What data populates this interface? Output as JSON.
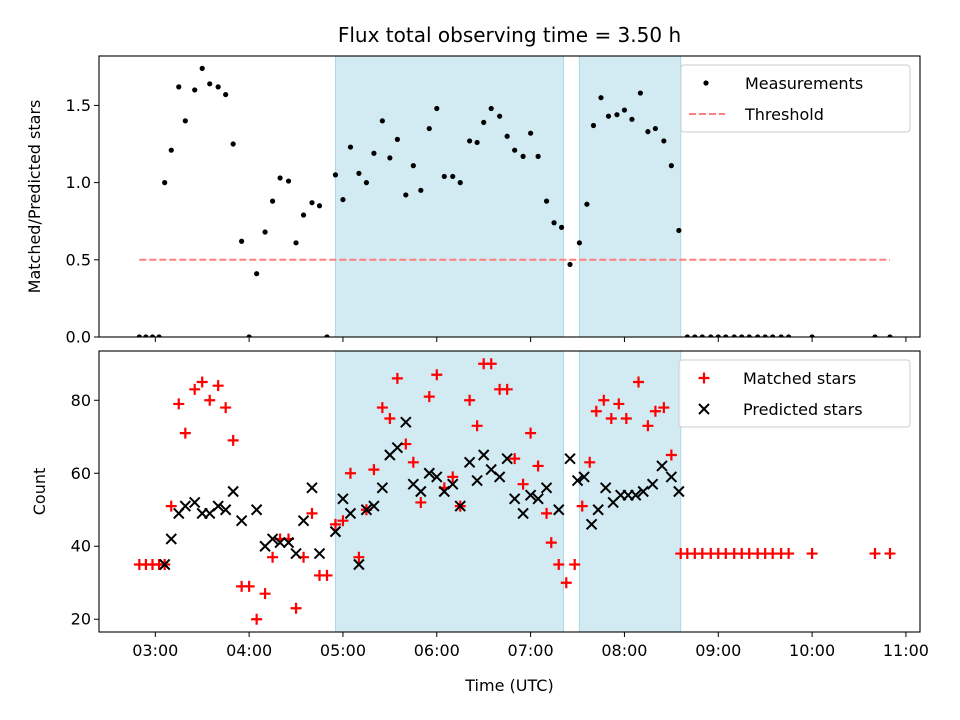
{
  "title": "Flux total observing time = 3.50 h",
  "x_tick_labels": [
    "03:00",
    "04:00",
    "05:00",
    "06:00",
    "07:00",
    "08:00",
    "09:00",
    "10:00",
    "11:00"
  ],
  "x_label": "Time (UTC)",
  "chart_data": [
    {
      "type": "scatter",
      "ylabel": "Matched/Predicted stars",
      "xlim": [
        2.4,
        11.15
      ],
      "ylim": [
        0,
        1.82
      ],
      "y_ticks": [
        0.0,
        0.5,
        1.0,
        1.5
      ],
      "y_tick_labels": [
        "0.0",
        "0.5",
        "1.0",
        "1.5"
      ],
      "shaded_intervals": [
        [
          4.92,
          7.35
        ],
        [
          7.52,
          8.6
        ]
      ],
      "shade_color": "#add8e6",
      "legend_position": "top-right",
      "series": [
        {
          "name": "Measurements",
          "marker": "dot",
          "color": "#000000",
          "points": [
            [
              2.83,
              0.0
            ],
            [
              2.9,
              0.0
            ],
            [
              2.97,
              0.0
            ],
            [
              3.04,
              0.0
            ],
            [
              3.1,
              1.0
            ],
            [
              3.17,
              1.21
            ],
            [
              3.25,
              1.62
            ],
            [
              3.32,
              1.4
            ],
            [
              3.42,
              1.6
            ],
            [
              3.5,
              1.74
            ],
            [
              3.58,
              1.64
            ],
            [
              3.67,
              1.62
            ],
            [
              3.75,
              1.57
            ],
            [
              3.83,
              1.25
            ],
            [
              3.92,
              0.62
            ],
            [
              4.0,
              0.0
            ],
            [
              4.08,
              0.41
            ],
            [
              4.17,
              0.68
            ],
            [
              4.25,
              0.88
            ],
            [
              4.33,
              1.03
            ],
            [
              4.42,
              1.01
            ],
            [
              4.5,
              0.61
            ],
            [
              4.58,
              0.79
            ],
            [
              4.67,
              0.87
            ],
            [
              4.75,
              0.85
            ],
            [
              4.83,
              0.0
            ],
            [
              4.92,
              1.05
            ],
            [
              5.0,
              0.89
            ],
            [
              5.08,
              1.23
            ],
            [
              5.17,
              1.06
            ],
            [
              5.25,
              1.0
            ],
            [
              5.33,
              1.19
            ],
            [
              5.42,
              1.4
            ],
            [
              5.5,
              1.16
            ],
            [
              5.58,
              1.28
            ],
            [
              5.67,
              0.92
            ],
            [
              5.75,
              1.11
            ],
            [
              5.83,
              0.95
            ],
            [
              5.92,
              1.35
            ],
            [
              6.0,
              1.48
            ],
            [
              6.08,
              1.04
            ],
            [
              6.17,
              1.04
            ],
            [
              6.25,
              1.0
            ],
            [
              6.35,
              1.27
            ],
            [
              6.43,
              1.26
            ],
            [
              6.5,
              1.39
            ],
            [
              6.58,
              1.48
            ],
            [
              6.67,
              1.43
            ],
            [
              6.75,
              1.3
            ],
            [
              6.83,
              1.21
            ],
            [
              6.92,
              1.17
            ],
            [
              7.0,
              1.32
            ],
            [
              7.08,
              1.17
            ],
            [
              7.17,
              0.88
            ],
            [
              7.25,
              0.74
            ],
            [
              7.33,
              0.71
            ],
            [
              7.42,
              0.47
            ],
            [
              7.52,
              0.61
            ],
            [
              7.6,
              0.86
            ],
            [
              7.67,
              1.37
            ],
            [
              7.75,
              1.55
            ],
            [
              7.83,
              1.43
            ],
            [
              7.92,
              1.44
            ],
            [
              8.0,
              1.47
            ],
            [
              8.08,
              1.41
            ],
            [
              8.17,
              1.58
            ],
            [
              8.25,
              1.33
            ],
            [
              8.33,
              1.35
            ],
            [
              8.42,
              1.27
            ],
            [
              8.5,
              1.11
            ],
            [
              8.58,
              0.69
            ],
            [
              8.67,
              0.0
            ],
            [
              8.75,
              0.0
            ],
            [
              8.83,
              0.0
            ],
            [
              8.92,
              0.0
            ],
            [
              9.0,
              0.0
            ],
            [
              9.08,
              0.0
            ],
            [
              9.17,
              0.0
            ],
            [
              9.25,
              0.0
            ],
            [
              9.33,
              0.0
            ],
            [
              9.42,
              0.0
            ],
            [
              9.5,
              0.0
            ],
            [
              9.58,
              0.0
            ],
            [
              9.67,
              0.0
            ],
            [
              9.75,
              0.0
            ],
            [
              10.0,
              0.0
            ],
            [
              10.67,
              0.0
            ],
            [
              10.83,
              0.0
            ]
          ]
        },
        {
          "name": "Threshold",
          "type": "line",
          "style": "dashed",
          "color": "#ff7f7f",
          "points": [
            [
              2.83,
              0.5
            ],
            [
              10.83,
              0.5
            ]
          ]
        }
      ]
    },
    {
      "type": "scatter",
      "ylabel": "Count",
      "xlim": [
        2.4,
        11.15
      ],
      "ylim": [
        16.5,
        93.5
      ],
      "y_ticks": [
        20,
        40,
        60,
        80
      ],
      "y_tick_labels": [
        "20",
        "40",
        "60",
        "80"
      ],
      "shaded_intervals": [
        [
          4.92,
          7.35
        ],
        [
          7.52,
          8.6
        ]
      ],
      "shade_color": "#add8e6",
      "legend_position": "top-right",
      "series": [
        {
          "name": "Matched stars",
          "marker": "plus",
          "color": "#ff0000",
          "points": [
            [
              2.83,
              35
            ],
            [
              2.9,
              35
            ],
            [
              2.97,
              35
            ],
            [
              3.04,
              35
            ],
            [
              3.1,
              35
            ],
            [
              3.17,
              51
            ],
            [
              3.25,
              79
            ],
            [
              3.32,
              71
            ],
            [
              3.42,
              83
            ],
            [
              3.5,
              85
            ],
            [
              3.58,
              80
            ],
            [
              3.67,
              84
            ],
            [
              3.75,
              78
            ],
            [
              3.83,
              69
            ],
            [
              3.92,
              29
            ],
            [
              4.0,
              29
            ],
            [
              4.08,
              20
            ],
            [
              4.17,
              27
            ],
            [
              4.25,
              37
            ],
            [
              4.33,
              42
            ],
            [
              4.42,
              42
            ],
            [
              4.5,
              23
            ],
            [
              4.58,
              37
            ],
            [
              4.67,
              49
            ],
            [
              4.75,
              32
            ],
            [
              4.83,
              32
            ],
            [
              4.92,
              46
            ],
            [
              5.0,
              47
            ],
            [
              5.08,
              60
            ],
            [
              5.17,
              37
            ],
            [
              5.25,
              50
            ],
            [
              5.33,
              61
            ],
            [
              5.42,
              78
            ],
            [
              5.5,
              75
            ],
            [
              5.58,
              86
            ],
            [
              5.67,
              68
            ],
            [
              5.75,
              63
            ],
            [
              5.83,
              52
            ],
            [
              5.92,
              81
            ],
            [
              6.0,
              87
            ],
            [
              6.08,
              56
            ],
            [
              6.17,
              59
            ],
            [
              6.25,
              51
            ],
            [
              6.35,
              80
            ],
            [
              6.43,
              73
            ],
            [
              6.5,
              90
            ],
            [
              6.58,
              90
            ],
            [
              6.67,
              83
            ],
            [
              6.75,
              83
            ],
            [
              6.83,
              64
            ],
            [
              6.92,
              57
            ],
            [
              7.0,
              71
            ],
            [
              7.08,
              62
            ],
            [
              7.17,
              49
            ],
            [
              7.22,
              41
            ],
            [
              7.3,
              35
            ],
            [
              7.38,
              30
            ],
            [
              7.47,
              35
            ],
            [
              7.55,
              51
            ],
            [
              7.63,
              63
            ],
            [
              7.7,
              77
            ],
            [
              7.78,
              80
            ],
            [
              7.86,
              75
            ],
            [
              7.94,
              79
            ],
            [
              8.02,
              75
            ],
            [
              8.15,
              85
            ],
            [
              8.25,
              73
            ],
            [
              8.33,
              77
            ],
            [
              8.42,
              78
            ],
            [
              8.5,
              65
            ],
            [
              8.6,
              38
            ],
            [
              8.67,
              38
            ],
            [
              8.75,
              38
            ],
            [
              8.83,
              38
            ],
            [
              8.92,
              38
            ],
            [
              9.0,
              38
            ],
            [
              9.08,
              38
            ],
            [
              9.17,
              38
            ],
            [
              9.25,
              38
            ],
            [
              9.33,
              38
            ],
            [
              9.42,
              38
            ],
            [
              9.5,
              38
            ],
            [
              9.58,
              38
            ],
            [
              9.67,
              38
            ],
            [
              9.75,
              38
            ],
            [
              10.0,
              38
            ],
            [
              10.67,
              38
            ],
            [
              10.83,
              38
            ]
          ]
        },
        {
          "name": "Predicted stars",
          "marker": "x",
          "color": "#000000",
          "points": [
            [
              3.1,
              35
            ],
            [
              3.17,
              42
            ],
            [
              3.25,
              49
            ],
            [
              3.32,
              51
            ],
            [
              3.42,
              52
            ],
            [
              3.5,
              49
            ],
            [
              3.58,
              49
            ],
            [
              3.67,
              51
            ],
            [
              3.75,
              50
            ],
            [
              3.83,
              55
            ],
            [
              3.92,
              47
            ],
            [
              4.08,
              50
            ],
            [
              4.17,
              40
            ],
            [
              4.25,
              42
            ],
            [
              4.33,
              41
            ],
            [
              4.42,
              41
            ],
            [
              4.5,
              38
            ],
            [
              4.58,
              47
            ],
            [
              4.67,
              56
            ],
            [
              4.75,
              38
            ],
            [
              4.92,
              44
            ],
            [
              5.0,
              53
            ],
            [
              5.08,
              49
            ],
            [
              5.17,
              35
            ],
            [
              5.25,
              50
            ],
            [
              5.33,
              51
            ],
            [
              5.42,
              56
            ],
            [
              5.5,
              65
            ],
            [
              5.58,
              67
            ],
            [
              5.67,
              74
            ],
            [
              5.75,
              57
            ],
            [
              5.83,
              55
            ],
            [
              5.92,
              60
            ],
            [
              6.0,
              59
            ],
            [
              6.08,
              55
            ],
            [
              6.17,
              57
            ],
            [
              6.25,
              51
            ],
            [
              6.35,
              63
            ],
            [
              6.43,
              58
            ],
            [
              6.5,
              65
            ],
            [
              6.58,
              61
            ],
            [
              6.67,
              59
            ],
            [
              6.75,
              64
            ],
            [
              6.83,
              53
            ],
            [
              6.92,
              49
            ],
            [
              7.0,
              54
            ],
            [
              7.08,
              53
            ],
            [
              7.17,
              56
            ],
            [
              7.3,
              50
            ],
            [
              7.42,
              64
            ],
            [
              7.5,
              58
            ],
            [
              7.57,
              59
            ],
            [
              7.65,
              46
            ],
            [
              7.72,
              50
            ],
            [
              7.8,
              56
            ],
            [
              7.88,
              52
            ],
            [
              7.96,
              54
            ],
            [
              8.04,
              54
            ],
            [
              8.12,
              54
            ],
            [
              8.2,
              55
            ],
            [
              8.3,
              57
            ],
            [
              8.4,
              62
            ],
            [
              8.5,
              59
            ],
            [
              8.58,
              55
            ]
          ]
        }
      ]
    }
  ]
}
